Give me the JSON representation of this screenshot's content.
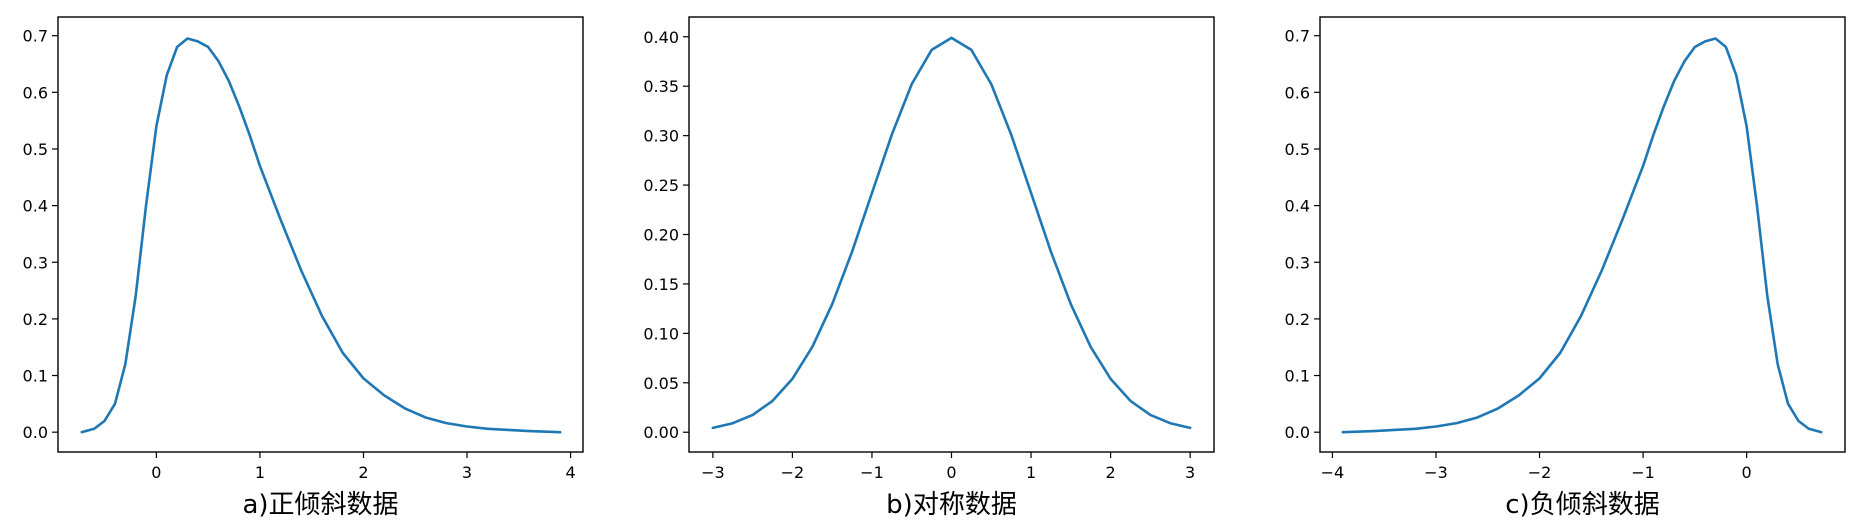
{
  "chart_data": [
    {
      "type": "line",
      "caption": "a)正倾斜数据",
      "xlim": [
        -0.95,
        4.12
      ],
      "ylim": [
        -0.035,
        0.733
      ],
      "xticks": [
        0,
        1,
        2,
        3,
        4
      ],
      "yticks": [
        0.0,
        0.1,
        0.2,
        0.3,
        0.4,
        0.5,
        0.6,
        0.7
      ],
      "xtick_labels": [
        "0",
        "1",
        "2",
        "3",
        "4"
      ],
      "ytick_labels": [
        "0.0",
        "0.1",
        "0.2",
        "0.3",
        "0.4",
        "0.5",
        "0.6",
        "0.7"
      ],
      "line_color": "#1f77b4",
      "x": [
        -0.72,
        -0.6,
        -0.5,
        -0.4,
        -0.3,
        -0.2,
        -0.1,
        0.0,
        0.1,
        0.2,
        0.3,
        0.4,
        0.45,
        0.5,
        0.6,
        0.7,
        0.8,
        0.9,
        1.0,
        1.2,
        1.4,
        1.6,
        1.8,
        2.0,
        2.2,
        2.4,
        2.6,
        2.8,
        3.0,
        3.2,
        3.4,
        3.6,
        3.9
      ],
      "y": [
        0.0,
        0.006,
        0.02,
        0.05,
        0.12,
        0.24,
        0.4,
        0.54,
        0.63,
        0.68,
        0.695,
        0.69,
        0.685,
        0.68,
        0.655,
        0.62,
        0.575,
        0.525,
        0.47,
        0.375,
        0.285,
        0.205,
        0.14,
        0.095,
        0.065,
        0.042,
        0.026,
        0.016,
        0.01,
        0.006,
        0.004,
        0.002,
        0.0
      ]
    },
    {
      "type": "line",
      "caption": "b)对称数据",
      "xlim": [
        -3.3,
        3.3
      ],
      "ylim": [
        -0.02,
        0.42
      ],
      "xticks": [
        -3,
        -2,
        -1,
        0,
        1,
        2,
        3
      ],
      "yticks": [
        0.0,
        0.05,
        0.1,
        0.15,
        0.2,
        0.25,
        0.3,
        0.35,
        0.4
      ],
      "xtick_labels": [
        "−3",
        "−2",
        "−1",
        "0",
        "1",
        "2",
        "3"
      ],
      "ytick_labels": [
        "0.00",
        "0.05",
        "0.10",
        "0.15",
        "0.20",
        "0.25",
        "0.30",
        "0.35",
        "0.40"
      ],
      "line_color": "#1f77b4",
      "x": [
        -3.0,
        -2.75,
        -2.5,
        -2.25,
        -2.0,
        -1.75,
        -1.5,
        -1.25,
        -1.0,
        -0.75,
        -0.5,
        -0.25,
        0.0,
        0.25,
        0.5,
        0.75,
        1.0,
        1.25,
        1.5,
        1.75,
        2.0,
        2.25,
        2.5,
        2.75,
        3.0
      ],
      "y": [
        0.0044,
        0.0091,
        0.0175,
        0.0317,
        0.054,
        0.0863,
        0.1295,
        0.1826,
        0.242,
        0.3011,
        0.3521,
        0.3867,
        0.3989,
        0.3867,
        0.3521,
        0.3011,
        0.242,
        0.1826,
        0.1295,
        0.0863,
        0.054,
        0.0317,
        0.0175,
        0.0091,
        0.0044
      ]
    },
    {
      "type": "line",
      "caption": "c)负倾斜数据",
      "xlim": [
        -4.12,
        0.95
      ],
      "ylim": [
        -0.035,
        0.733
      ],
      "xticks": [
        -4,
        -3,
        -2,
        -1,
        0
      ],
      "yticks": [
        0.0,
        0.1,
        0.2,
        0.3,
        0.4,
        0.5,
        0.6,
        0.7
      ],
      "xtick_labels": [
        "−4",
        "−3",
        "−2",
        "−1",
        "0"
      ],
      "ytick_labels": [
        "0.0",
        "0.1",
        "0.2",
        "0.3",
        "0.4",
        "0.5",
        "0.6",
        "0.7"
      ],
      "line_color": "#1f77b4",
      "x": [
        -3.9,
        -3.6,
        -3.4,
        -3.2,
        -3.0,
        -2.8,
        -2.6,
        -2.4,
        -2.2,
        -2.0,
        -1.8,
        -1.6,
        -1.4,
        -1.2,
        -1.0,
        -0.9,
        -0.8,
        -0.7,
        -0.6,
        -0.5,
        -0.45,
        -0.4,
        -0.3,
        -0.2,
        -0.1,
        0.0,
        0.1,
        0.2,
        0.3,
        0.4,
        0.5,
        0.6,
        0.72
      ],
      "y": [
        0.0,
        0.002,
        0.004,
        0.006,
        0.01,
        0.016,
        0.026,
        0.042,
        0.065,
        0.095,
        0.14,
        0.205,
        0.285,
        0.375,
        0.47,
        0.525,
        0.575,
        0.62,
        0.655,
        0.68,
        0.685,
        0.69,
        0.695,
        0.68,
        0.63,
        0.54,
        0.4,
        0.24,
        0.12,
        0.05,
        0.02,
        0.006,
        0.0
      ]
    }
  ]
}
